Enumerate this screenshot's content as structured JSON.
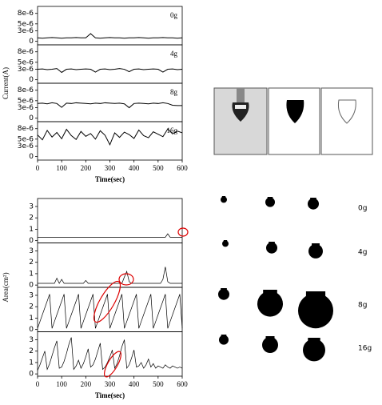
{
  "chart_data": [
    {
      "type": "line",
      "layout": "stacked",
      "y_label": "Current(A)",
      "x_label": "Time(sec)",
      "color": "#000000",
      "x": [
        0,
        20,
        40,
        60,
        80,
        100,
        120,
        140,
        160,
        180,
        200,
        220,
        240,
        260,
        280,
        300,
        320,
        340,
        360,
        380,
        400,
        420,
        440,
        460,
        480,
        500,
        520,
        540,
        560,
        580,
        600
      ],
      "xlim": [
        0,
        600
      ],
      "xticks": [
        0,
        100,
        200,
        300,
        400,
        500,
        600
      ],
      "ylim": [
        -1e-06,
        1e-05
      ],
      "yticks": [
        0,
        {
          "value": 3e-06,
          "label": "3e-6"
        },
        {
          "value": 5e-06,
          "label": "5e-6"
        },
        {
          "value": 8e-06,
          "label": "8e-6"
        }
      ],
      "series": [
        {
          "name": "0g",
          "values": [
            1e-06,
            9e-07,
            1e-06,
            1.1e-06,
            1e-06,
            9e-07,
            1e-06,
            1e-06,
            1.1e-06,
            1e-06,
            1e-06,
            2.2e-06,
            1e-06,
            9e-07,
            1e-06,
            1.1e-06,
            1e-06,
            1e-06,
            9e-07,
            1e-06,
            1e-06,
            1.1e-06,
            1e-06,
            9e-07,
            1e-06,
            1e-06,
            1.1e-06,
            1e-06,
            1e-06,
            9e-07,
            1e-06
          ]
        },
        {
          "name": "4g",
          "values": [
            3e-06,
            3.1e-06,
            2.9e-06,
            3e-06,
            3.2e-06,
            2.1e-06,
            3e-06,
            3.1e-06,
            2.9e-06,
            3e-06,
            3.1e-06,
            3e-06,
            2.2e-06,
            3e-06,
            3.1e-06,
            2.9e-06,
            3e-06,
            3.2e-06,
            3e-06,
            2.3e-06,
            3e-06,
            3.1e-06,
            2.9e-06,
            3e-06,
            3.1e-06,
            3e-06,
            2.2e-06,
            3e-06,
            3.1e-06,
            2.9e-06,
            3e-06
          ]
        },
        {
          "name": "8g",
          "values": [
            4.2e-06,
            4.3e-06,
            4.1e-06,
            4.4e-06,
            4.2e-06,
            3.1e-06,
            4.3e-06,
            4.2e-06,
            4.4e-06,
            4.3e-06,
            4.2e-06,
            4.1e-06,
            4.3e-06,
            4.2e-06,
            4.4e-06,
            4.3e-06,
            4.2e-06,
            4.3e-06,
            4.1e-06,
            3e-06,
            4.2e-06,
            4.3e-06,
            4.2e-06,
            4.1e-06,
            4.3e-06,
            4.2e-06,
            4.4e-06,
            4.2e-06,
            3.7e-06,
            3.6e-06,
            3.6e-06
          ]
        },
        {
          "name": "16g",
          "values": [
            6.2e-06,
            4.8e-06,
            7.5e-06,
            5.6e-06,
            6.9e-06,
            5.1e-06,
            7.8e-06,
            6e-06,
            4.9e-06,
            7.2e-06,
            5.8e-06,
            6.6e-06,
            5e-06,
            7.4e-06,
            6.1e-06,
            3.4e-06,
            6.8e-06,
            5.5e-06,
            7e-06,
            6.3e-06,
            5.2e-06,
            7.6e-06,
            6e-06,
            5.4e-06,
            7.1e-06,
            6.4e-06,
            5.7e-06,
            7.9e-06,
            6.5e-06,
            7.3e-06,
            6.8e-06
          ]
        }
      ]
    },
    {
      "type": "line",
      "layout": "stacked",
      "y_label": "Area(cm²)",
      "x_label": "Time(sec)",
      "color": "#000000",
      "x": [
        0,
        10,
        20,
        30,
        40,
        50,
        60,
        70,
        80,
        90,
        100,
        110,
        120,
        130,
        140,
        150,
        160,
        170,
        180,
        190,
        200,
        210,
        220,
        230,
        240,
        250,
        260,
        270,
        280,
        290,
        300,
        310,
        320,
        330,
        340,
        350,
        360,
        370,
        380,
        390,
        400,
        410,
        420,
        430,
        440,
        450,
        460,
        470,
        480,
        490,
        500,
        510,
        520,
        530,
        540,
        550,
        560,
        570,
        580,
        590,
        600
      ],
      "xlim": [
        0,
        600
      ],
      "xticks": [
        0,
        100,
        200,
        300,
        400,
        500,
        600
      ],
      "ylim": [
        -0.2,
        3.7
      ],
      "yticks": [
        0,
        1,
        2,
        3
      ],
      "series": [
        {
          "values": [
            0.3,
            0.3,
            0.3,
            0.3,
            0.3,
            0.3,
            0.3,
            0.3,
            0.3,
            0.3,
            0.3,
            0.3,
            0.3,
            0.3,
            0.3,
            0.3,
            0.3,
            0.3,
            0.3,
            0.3,
            0.3,
            0.3,
            0.3,
            0.3,
            0.3,
            0.3,
            0.3,
            0.3,
            0.3,
            0.3,
            0.3,
            0.3,
            0.3,
            0.3,
            0.3,
            0.3,
            0.3,
            0.3,
            0.3,
            0.3,
            0.3,
            0.3,
            0.3,
            0.3,
            0.3,
            0.3,
            0.3,
            0.3,
            0.3,
            0.3,
            0.3,
            0.3,
            0.3,
            0.3,
            0.6,
            0.3,
            0.3,
            0.3,
            0.3,
            0.3,
            0.3
          ]
        },
        {
          "values": [
            0.15,
            0.15,
            0.15,
            0.15,
            0.15,
            0.15,
            0.15,
            0.15,
            0.6,
            0.15,
            0.5,
            0.15,
            0.15,
            0.15,
            0.15,
            0.15,
            0.15,
            0.15,
            0.15,
            0.15,
            0.4,
            0.15,
            0.15,
            0.15,
            0.15,
            0.15,
            0.15,
            0.15,
            0.15,
            0.15,
            0.15,
            0.15,
            0.15,
            0.15,
            0.15,
            0.15,
            0.7,
            1.2,
            0.3,
            0.15,
            0.15,
            0.15,
            0.15,
            0.15,
            0.15,
            0.15,
            0.15,
            0.15,
            0.15,
            0.15,
            0.15,
            0.15,
            0.5,
            1.6,
            0.3,
            0.15,
            0.15,
            0.15,
            0.15,
            0.15,
            0.15
          ]
        },
        {
          "values": [
            0.1,
            0.7,
            1.3,
            1.9,
            2.5,
            3.1,
            0.1,
            0.7,
            1.3,
            1.9,
            2.5,
            3.1,
            0.1,
            0.7,
            1.3,
            1.9,
            2.5,
            3.1,
            0.1,
            0.7,
            1.3,
            1.9,
            2.5,
            3.1,
            0.1,
            0.7,
            1.3,
            1.9,
            2.5,
            3.1,
            0.1,
            0.7,
            1.3,
            1.9,
            2.5,
            3.1,
            0.1,
            0.7,
            1.3,
            1.9,
            2.5,
            3.1,
            0.1,
            0.7,
            1.3,
            1.9,
            2.5,
            3.1,
            0.1,
            0.7,
            1.3,
            1.9,
            2.5,
            3.1,
            0.1,
            0.7,
            1.3,
            1.9,
            2.5,
            3.1,
            0.1
          ]
        },
        {
          "values": [
            0.3,
            0.8,
            1.4,
            2.0,
            0.4,
            0.9,
            1.6,
            2.3,
            2.9,
            0.5,
            0.6,
            1.1,
            1.8,
            2.6,
            3.2,
            0.4,
            0.7,
            1.2,
            0.5,
            0.9,
            1.5,
            2.2,
            0.6,
            0.8,
            1.3,
            2.0,
            2.7,
            0.4,
            0.6,
            1.0,
            1.5,
            2.1,
            0.5,
            0.9,
            1.6,
            2.4,
            3.0,
            0.5,
            0.8,
            1.4,
            2.1,
            0.6,
            0.7,
            1.0,
            0.5,
            0.8,
            1.3,
            0.6,
            0.9,
            0.5,
            0.7,
            0.6,
            0.5,
            0.8,
            0.6,
            0.5,
            0.7,
            0.6,
            0.5,
            0.6,
            0.5
          ]
        }
      ]
    }
  ],
  "image_labels": [
    "0g",
    "4g",
    "8g",
    "16g"
  ]
}
